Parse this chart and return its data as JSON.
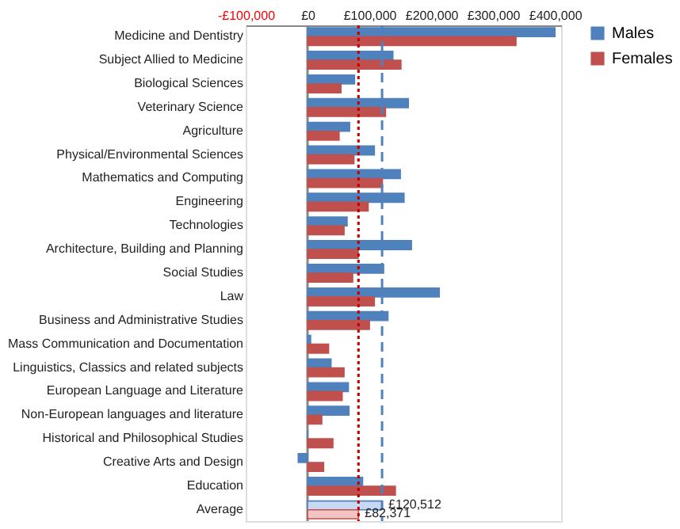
{
  "chart_data": {
    "type": "bar",
    "orientation": "horizontal",
    "categories": [
      "Medicine and Dentistry",
      "Subject Allied to Medicine",
      "Biological Sciences",
      "Veterinary Science",
      "Agriculture",
      "Physical/Environmental Sciences",
      "Mathematics and Computing",
      "Engineering",
      "Technologies",
      "Architecture, Building and Planning",
      "Social Studies",
      "Law",
      "Business and Administrative Studies",
      "Mass Communication and Documentation",
      "Linguistics, Classics and related subjects",
      "European Language and Literature",
      "Non-European languages and literature",
      "Historical and Philosophical Studies",
      "Creative Arts and Design",
      "Education",
      "Average"
    ],
    "series": [
      {
        "name": "Males",
        "color": "#4f81bd",
        "colors": [
          "#4f81bd",
          "#4f81bd",
          "#4f81bd",
          "#4f81bd",
          "#4f81bd",
          "#4f81bd",
          "#4f81bd",
          "#4f81bd",
          "#4f81bd",
          "#4f81bd",
          "#4f81bd",
          "#4f81bd",
          "#4f81bd",
          "#4f81bd",
          "#4f81bd",
          "#4f81bd",
          "#4f81bd",
          "#4f81bd",
          "#4f81bd",
          "#4f81bd",
          "#c6d9f1"
        ],
        "values": [
          400000,
          138000,
          76000,
          163000,
          68000,
          108000,
          150000,
          156000,
          64000,
          168000,
          123000,
          213000,
          130000,
          5000,
          38000,
          66000,
          67000,
          0,
          -15000,
          89000,
          120512
        ],
        "value_labels": [
          null,
          null,
          null,
          null,
          null,
          null,
          null,
          null,
          null,
          null,
          null,
          null,
          null,
          null,
          null,
          null,
          null,
          null,
          null,
          null,
          "£120,512"
        ]
      },
      {
        "name": "Females",
        "color": "#c0504d",
        "colors": [
          "#c0504d",
          "#c0504d",
          "#c0504d",
          "#c0504d",
          "#c0504d",
          "#c0504d",
          "#c0504d",
          "#c0504d",
          "#c0504d",
          "#c0504d",
          "#c0504d",
          "#c0504d",
          "#c0504d",
          "#c0504d",
          "#c0504d",
          "#c0504d",
          "#c0504d",
          "#c0504d",
          "#c0504d",
          "#c0504d",
          "#f2c4c3"
        ],
        "values": [
          337000,
          151000,
          54000,
          126000,
          51000,
          75000,
          121000,
          98000,
          59000,
          82000,
          73000,
          108000,
          100000,
          34000,
          59000,
          56000,
          23000,
          41000,
          26000,
          142000,
          82371
        ],
        "value_labels": [
          null,
          null,
          null,
          null,
          null,
          null,
          null,
          null,
          null,
          null,
          null,
          null,
          null,
          null,
          null,
          null,
          null,
          null,
          null,
          null,
          "£82,371"
        ]
      }
    ],
    "xlim": [
      -100000,
      410000
    ],
    "xticks": [
      {
        "value": -100000,
        "label": "-£100,000"
      },
      {
        "value": 0,
        "label": "£0"
      },
      {
        "value": 100000,
        "label": "£100,000"
      },
      {
        "value": 200000,
        "label": "£200,000"
      },
      {
        "value": 300000,
        "label": "£300,000"
      },
      {
        "value": 400000,
        "label": "£400,000"
      }
    ],
    "ref_lines": [
      {
        "axis": "x",
        "value": 0,
        "color": "#888888",
        "line_style": "solid"
      },
      {
        "axis": "x",
        "value": 120512,
        "color": "#4f81bd",
        "line_style": "dashed"
      },
      {
        "axis": "x",
        "value": 82371,
        "color": "#c00000",
        "line_style": "dotted"
      }
    ],
    "legend": "right",
    "grid": false
  }
}
